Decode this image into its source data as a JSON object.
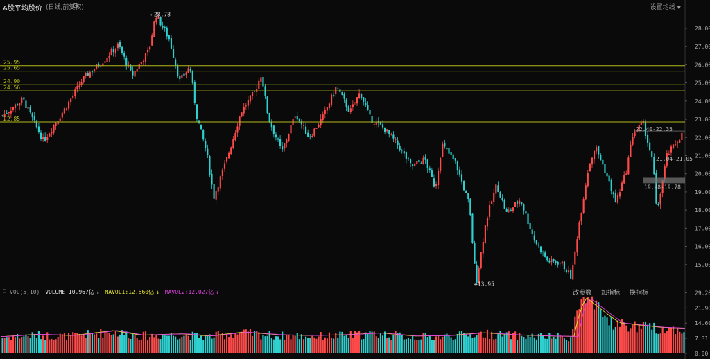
{
  "header": {
    "title": "A股平均股价",
    "subtitle": "(日线,前复权)",
    "settings_icon": "gear-icon",
    "ma_button": "设置均线"
  },
  "volume_panel": {
    "label": "VOL(5,10)",
    "volume": "VOLUME:10.967亿",
    "mavol1": "MAVOL1:12.660亿",
    "mavol2": "MAVOL2:12.027亿",
    "tools": [
      "改参数",
      "加指标",
      "换指标"
    ]
  },
  "colors": {
    "up": "#ff4a4a",
    "down": "#2fd0d0",
    "level": "#b3b81a",
    "mavol1": "#e8e82a",
    "mavol2": "#e040e0"
  },
  "chart_data": [
    {
      "type": "candlestick",
      "ylim": [
        14.0,
        28.8
      ],
      "yticks": [
        "28.00",
        "27.00",
        "26.00",
        "25.00",
        "24.00",
        "23.00",
        "22.00",
        "21.00",
        "20.00",
        "19.00",
        "18.00",
        "17.00",
        "16.00",
        "15.00"
      ],
      "levels": [
        {
          "label": "25.95",
          "value": 25.95
        },
        {
          "label": "25.65",
          "value": 25.65
        },
        {
          "label": "24.90",
          "value": 24.9
        },
        {
          "label": "24.56",
          "value": 24.56
        },
        {
          "label": "22.85",
          "value": 22.85
        }
      ],
      "annotations": [
        {
          "text": "←28.78",
          "value": 28.78
        },
        {
          "text": "←13.95",
          "value": 13.95
        },
        {
          "text": "22.40-22.35"
        },
        {
          "text": "21.04-21.05"
        },
        {
          "text": "19.48-19.78"
        }
      ],
      "close_path": [
        [
          0,
          23.2
        ],
        [
          0.03,
          24.1
        ],
        [
          0.06,
          21.8
        ],
        [
          0.09,
          23.5
        ],
        [
          0.12,
          25.3
        ],
        [
          0.15,
          26.3
        ],
        [
          0.17,
          27.1
        ],
        [
          0.19,
          25.4
        ],
        [
          0.215,
          26.8
        ],
        [
          0.225,
          28.78
        ],
        [
          0.245,
          27.4
        ],
        [
          0.26,
          25.1
        ],
        [
          0.275,
          25.9
        ],
        [
          0.285,
          23.2
        ],
        [
          0.3,
          21.1
        ],
        [
          0.31,
          18.7
        ],
        [
          0.33,
          20.9
        ],
        [
          0.35,
          23.4
        ],
        [
          0.37,
          24.5
        ],
        [
          0.38,
          25.5
        ],
        [
          0.39,
          23.1
        ],
        [
          0.41,
          21.2
        ],
        [
          0.43,
          23.3
        ],
        [
          0.45,
          22.0
        ],
        [
          0.47,
          23.1
        ],
        [
          0.49,
          24.8
        ],
        [
          0.51,
          23.4
        ],
        [
          0.525,
          24.5
        ],
        [
          0.54,
          23.0
        ],
        [
          0.56,
          22.5
        ],
        [
          0.58,
          21.6
        ],
        [
          0.6,
          20.4
        ],
        [
          0.62,
          20.8
        ],
        [
          0.635,
          19.2
        ],
        [
          0.645,
          21.6
        ],
        [
          0.665,
          20.6
        ],
        [
          0.685,
          18.3
        ],
        [
          0.695,
          13.95
        ],
        [
          0.71,
          17.5
        ],
        [
          0.725,
          19.4
        ],
        [
          0.74,
          17.8
        ],
        [
          0.76,
          18.6
        ],
        [
          0.78,
          16.4
        ],
        [
          0.8,
          15.2
        ],
        [
          0.82,
          15.1
        ],
        [
          0.835,
          14.3
        ],
        [
          0.845,
          17.0
        ],
        [
          0.86,
          20.4
        ],
        [
          0.87,
          21.5
        ],
        [
          0.885,
          20.1
        ],
        [
          0.9,
          18.4
        ],
        [
          0.915,
          20.1
        ],
        [
          0.925,
          22.2
        ],
        [
          0.94,
          22.8
        ],
        [
          0.955,
          20.5
        ],
        [
          0.96,
          17.8
        ],
        [
          0.975,
          21.0
        ],
        [
          0.99,
          21.8
        ],
        [
          1.0,
          22.3
        ]
      ]
    },
    {
      "type": "bar",
      "ylim": [
        0,
        30
      ],
      "yticks": [
        "29.20",
        "21.90",
        "14.60",
        "7.31",
        "0.00"
      ],
      "volume_profile": [
        [
          0,
          7.8
        ],
        [
          0.05,
          8.8
        ],
        [
          0.1,
          8.2
        ],
        [
          0.16,
          10.5
        ],
        [
          0.2,
          8.4
        ],
        [
          0.26,
          9.0
        ],
        [
          0.3,
          8.0
        ],
        [
          0.35,
          9.8
        ],
        [
          0.4,
          8.6
        ],
        [
          0.45,
          8.2
        ],
        [
          0.5,
          8.6
        ],
        [
          0.55,
          9.4
        ],
        [
          0.6,
          8.0
        ],
        [
          0.65,
          8.2
        ],
        [
          0.7,
          9.5
        ],
        [
          0.75,
          8.5
        ],
        [
          0.8,
          8.0
        ],
        [
          0.835,
          7.8
        ],
        [
          0.84,
          16.5
        ],
        [
          0.85,
          26.0
        ],
        [
          0.87,
          21.0
        ],
        [
          0.9,
          14.0
        ],
        [
          0.93,
          13.0
        ],
        [
          0.96,
          12.0
        ],
        [
          1.0,
          11.5
        ]
      ]
    }
  ]
}
